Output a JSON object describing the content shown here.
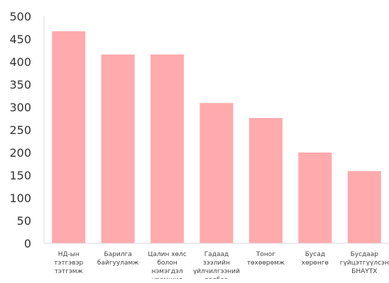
{
  "chart_data": {
    "type": "bar",
    "title": "",
    "xlabel": "",
    "ylabel": "",
    "ylim": [
      0,
      500
    ],
    "yticks": [
      0,
      50,
      100,
      150,
      200,
      250,
      300,
      350,
      400,
      450,
      500
    ],
    "grid": false,
    "categories": [
      "НД-ын тэтгэвэр тэтгэмж",
      "Барилга байгууламж",
      "Цалин хөлс болон нэмэгдэл урамшил",
      "Гадаад зээлийн үйлчилгээний төлбөр",
      "Тоног төхөөрөмж",
      "Бусад хөрөнгө",
      "Бусдаар гүйцэтгүүлсэн БНАҮТХ"
    ],
    "category_lines": [
      [
        "НД-ын",
        "тэтгэвэр",
        "тэтгэмж"
      ],
      [
        "Барилга",
        "байгууламж"
      ],
      [
        "Цалин хөлс",
        "болон",
        "нэмэгдэл",
        "урамшил"
      ],
      [
        "Гадаад",
        "зээлийн",
        "үйлчилгээний",
        "төлбөр"
      ],
      [
        "Тоног",
        "төхөөрөмж"
      ],
      [
        "Бусад",
        "хөрөнгө"
      ],
      [
        "Бусдаар",
        "гүйцэтгүүлсэн",
        "БНАҮТХ"
      ]
    ],
    "values": [
      467,
      416,
      416,
      309,
      276,
      200,
      159
    ],
    "bar_color": "#ffaaad",
    "axis_color": "#d9d9d9"
  }
}
